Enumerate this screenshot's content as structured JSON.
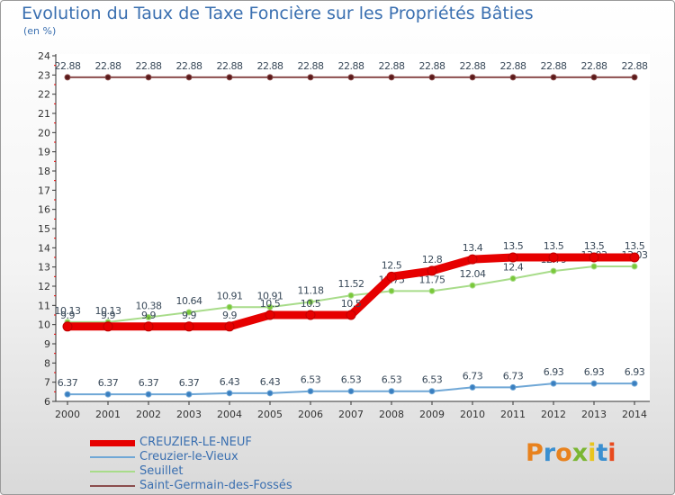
{
  "title": "Evolution du Taux de Taxe Foncière sur les Propriétés Bâties",
  "unit_label": "(en %)",
  "logo": {
    "text": "Proxiti",
    "colors": [
      "#e8821e",
      "#3a8fd0",
      "#e8821e",
      "#7ab632",
      "#e8c41e",
      "#3a8fd0",
      "#e84a1e"
    ]
  },
  "chart_data": {
    "type": "line",
    "title": "Evolution du Taux de Taxe Foncière sur les Propriétés Bâties",
    "ylabel": "(en %)",
    "xlabel": "",
    "ylim": [
      6,
      24
    ],
    "yticks": [
      6,
      7,
      8,
      9,
      10,
      11,
      12,
      13,
      14,
      15,
      16,
      17,
      18,
      19,
      20,
      21,
      22,
      23,
      24
    ],
    "categories": [
      "2000",
      "2001",
      "2002",
      "2003",
      "2004",
      "2005",
      "2006",
      "2007",
      "2008",
      "2009",
      "2010",
      "2011",
      "2012",
      "2013",
      "2014"
    ],
    "series": [
      {
        "name": "Saint-Germain-des-Fossés",
        "color": "#8b4d4d",
        "markerColor": "#5a1a1a",
        "width": 2,
        "values": [
          22.88,
          22.88,
          22.88,
          22.88,
          22.88,
          22.88,
          22.88,
          22.88,
          22.88,
          22.88,
          22.88,
          22.88,
          22.88,
          22.88,
          22.88
        ],
        "labels": [
          "22.88",
          "22.88",
          "22.88",
          "22.88",
          "22.88",
          "22.88",
          "22.88",
          "22.88",
          "22.88",
          "22.88",
          "22.88",
          "22.88",
          "22.88",
          "22.88",
          "22.88"
        ]
      },
      {
        "name": "Seuillet",
        "color": "#a8dc8a",
        "markerColor": "#7ac83a",
        "width": 2,
        "values": [
          10.13,
          10.13,
          10.38,
          10.64,
          10.91,
          10.91,
          11.18,
          11.52,
          11.75,
          11.75,
          12.04,
          12.4,
          12.79,
          13.03,
          13.03
        ],
        "labels": [
          "10.13",
          "10.13",
          "10.38",
          "10.64",
          "10.91",
          "10.91",
          "11.18",
          "11.52",
          "11.75",
          "11.75",
          "12.04",
          "12.4",
          "12.79",
          "13.03",
          "13.03"
        ]
      },
      {
        "name": "Creuzier-le-Vieux",
        "color": "#6fa7d6",
        "markerColor": "#3a7fc0",
        "width": 2,
        "values": [
          6.37,
          6.37,
          6.37,
          6.37,
          6.43,
          6.43,
          6.53,
          6.53,
          6.53,
          6.53,
          6.73,
          6.73,
          6.93,
          6.93,
          6.93
        ],
        "labels": [
          "6.37",
          "6.37",
          "6.37",
          "6.37",
          "6.43",
          "6.43",
          "6.53",
          "6.53",
          "6.53",
          "6.53",
          "6.73",
          "6.73",
          "6.93",
          "6.93",
          "6.93"
        ]
      },
      {
        "name": "CREUZIER-LE-NEUF",
        "color": "#e60000",
        "markerColor": "#e60000",
        "width": 9,
        "values": [
          9.9,
          9.9,
          9.9,
          9.9,
          9.9,
          10.5,
          10.5,
          10.5,
          12.5,
          12.8,
          13.4,
          13.5,
          13.5,
          13.5,
          13.5
        ],
        "labels": [
          "9.9",
          "9.9",
          "9.9",
          "9.9",
          "9.9",
          "10.5",
          "10.5",
          "10.5",
          "12.5",
          "12.8",
          "13.4",
          "13.5",
          "13.5",
          "13.5",
          "13.5"
        ]
      }
    ]
  }
}
